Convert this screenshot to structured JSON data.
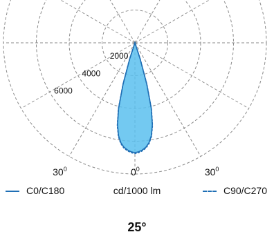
{
  "chart_data": {
    "type": "polar",
    "unit": "cd/1000 lm",
    "radial_ticks": [
      "2000",
      "4000",
      "6000"
    ],
    "radial_tick_values": [
      2000,
      4000,
      6000
    ],
    "radial_max": 8000,
    "angle_labels": [
      {
        "deg": "30",
        "sup": "0"
      },
      {
        "deg": "0",
        "sup": "0"
      },
      {
        "deg": "30",
        "sup": "0"
      }
    ],
    "angle_values": [
      -30,
      0,
      30
    ],
    "series": [
      {
        "name": "C0/C180",
        "style": "solid",
        "color": "#1f6fb5",
        "angles": [
          0,
          2,
          4,
          6,
          8,
          10,
          12,
          14,
          16,
          18,
          20
        ],
        "values": [
          6700,
          6650,
          6550,
          6400,
          6150,
          5750,
          5100,
          4100,
          2600,
          1000,
          0
        ]
      },
      {
        "name": "C90/C270",
        "style": "dashed",
        "color": "#1f6fb5",
        "angles": [
          0,
          2,
          4,
          6,
          8,
          10,
          12,
          14,
          16,
          18,
          20
        ],
        "values": [
          6750,
          6700,
          6600,
          6450,
          6200,
          5800,
          5150,
          4150,
          2650,
          1050,
          0
        ]
      }
    ],
    "fill_color": "#5bc0ef",
    "beam_angle": "25°"
  },
  "legend": {
    "left": "C0/C180",
    "center": "cd/1000 lm",
    "right": "C90/C270"
  },
  "beam_angle": "25°"
}
